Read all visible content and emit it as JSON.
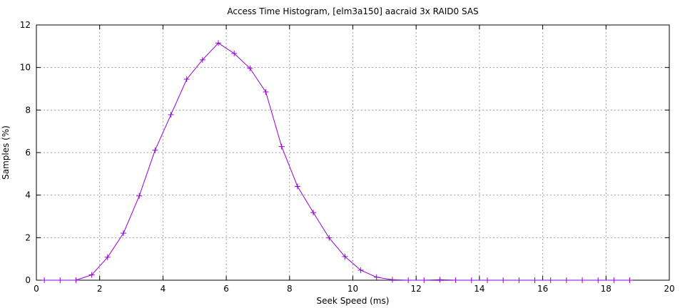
{
  "chart_data": {
    "type": "line",
    "title": "Access Time Histogram, [elm3a150] aacraid 3x RAID0 SAS",
    "xlabel": "Seek Speed (ms)",
    "ylabel": "Samples (%)",
    "xlim": [
      0,
      20
    ],
    "ylim": [
      0,
      12
    ],
    "x_ticks": [
      0,
      2,
      4,
      6,
      8,
      10,
      12,
      14,
      16,
      18,
      20
    ],
    "y_ticks": [
      0,
      2,
      4,
      6,
      8,
      10,
      12
    ],
    "grid": true,
    "series": [
      {
        "color": "#9400d3",
        "marker": "plus",
        "x": [
          0.25,
          0.75,
          1.25,
          1.75,
          2.25,
          2.75,
          3.25,
          3.75,
          4.25,
          4.75,
          5.25,
          5.75,
          6.25,
          6.75,
          7.25,
          7.75,
          8.25,
          8.75,
          9.25,
          9.75,
          10.25,
          10.75,
          11.25,
          11.75,
          12.25,
          12.75,
          13.25,
          13.75,
          14.25,
          14.75,
          15.25,
          15.75,
          16.25,
          16.75,
          17.25,
          17.75,
          18.25,
          18.75
        ],
        "y": [
          0.0,
          0.0,
          0.0,
          0.25,
          1.08,
          2.21,
          3.96,
          6.11,
          7.78,
          9.45,
          10.36,
          11.15,
          10.66,
          9.96,
          8.85,
          6.28,
          4.41,
          3.18,
          1.99,
          1.11,
          0.47,
          0.14,
          0.02,
          0.0,
          0.0,
          0.02,
          0.0,
          0.0,
          0.0,
          0.0,
          0.0,
          0.0,
          0.0,
          0.0,
          0.0,
          0.0,
          0.0,
          0.0
        ]
      }
    ]
  }
}
